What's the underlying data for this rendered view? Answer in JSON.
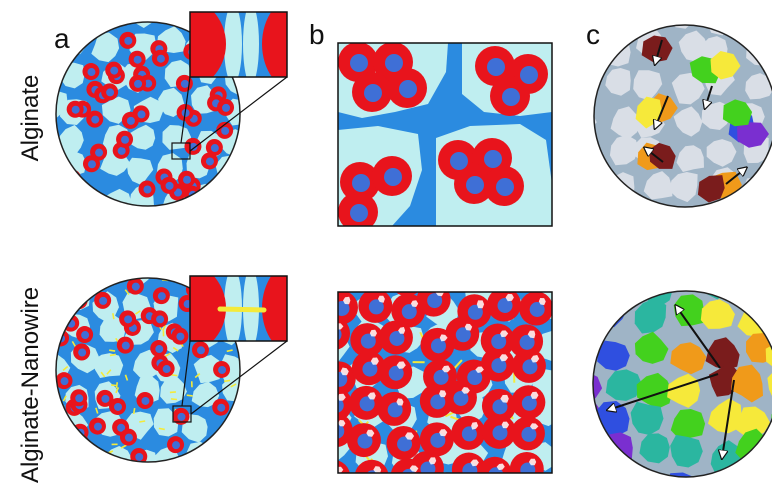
{
  "panel_labels": {
    "a": "a",
    "b": "b",
    "c": "c"
  },
  "row_labels": {
    "top": "Alginate",
    "bottom": "Alginate-Nanowire"
  },
  "colors": {
    "gel": "#2b8be0",
    "cell": "#e8141c",
    "nucleus": "#3f6fd6",
    "matrix": "#bfeef0",
    "gap": "#9fb4c6",
    "idle": "#d9dee6",
    "nanowire": "#f4ea3a",
    "outline": "#222222"
  },
  "heat_colors": [
    "#7a1c1c",
    "#f09a1a",
    "#f6e93a",
    "#43d11e",
    "#2bb6a0",
    "#2f4fe0",
    "#7a2fd0"
  ]
}
